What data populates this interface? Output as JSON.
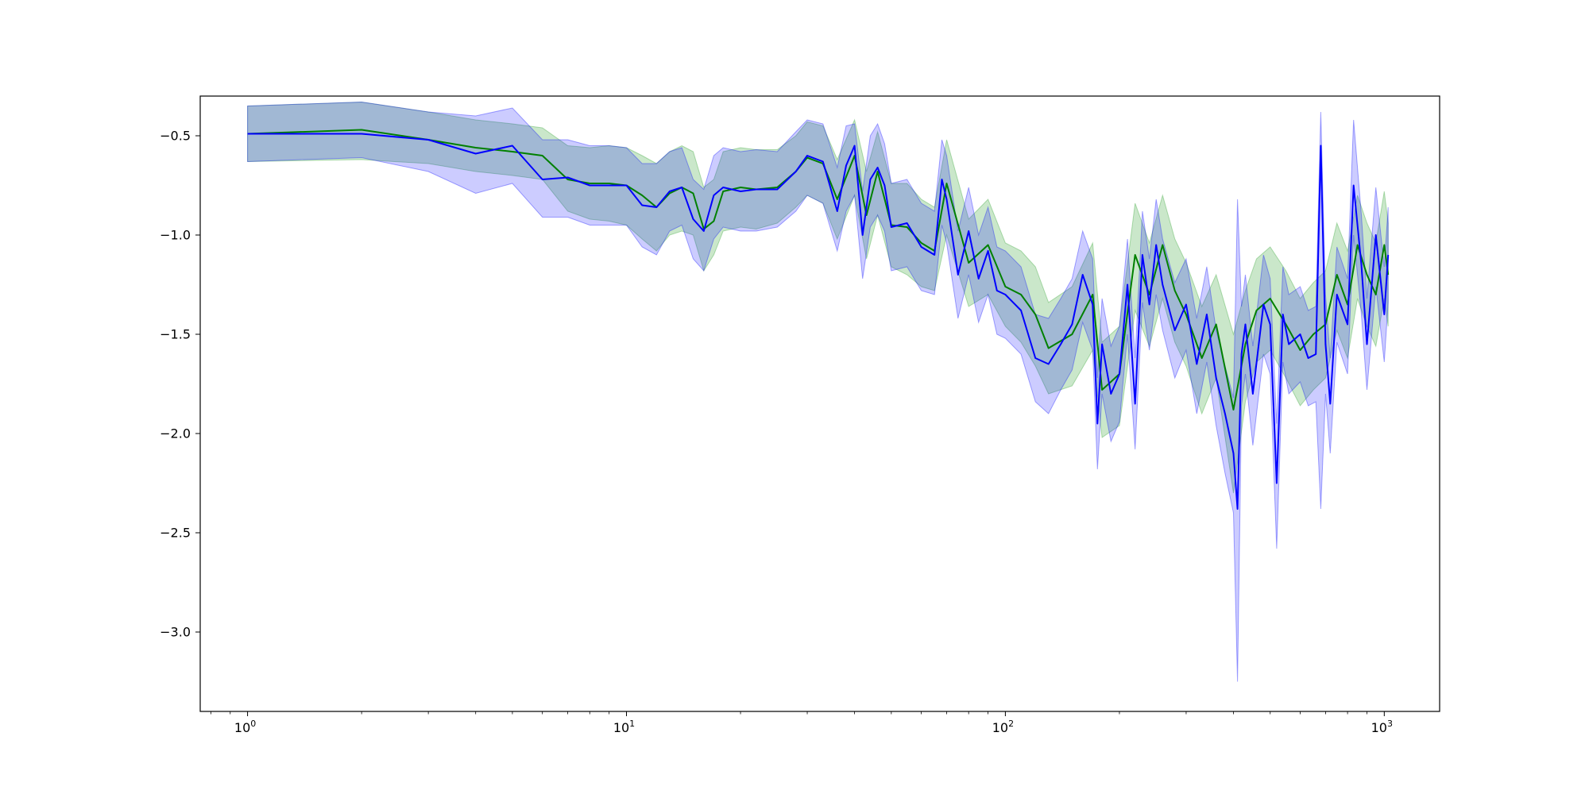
{
  "chart_data": {
    "type": "line",
    "title": "",
    "xlabel": "",
    "ylabel": "",
    "x_scale": "log",
    "xlim": [
      0.75,
      1400
    ],
    "ylim": [
      -3.4,
      -0.3
    ],
    "grid": false,
    "x_ticks": [
      {
        "value": 1,
        "label": "10",
        "exp": "0"
      },
      {
        "value": 10,
        "label": "10",
        "exp": "1"
      },
      {
        "value": 100,
        "label": "10",
        "exp": "2"
      },
      {
        "value": 1000,
        "label": "10",
        "exp": "3"
      }
    ],
    "y_ticks": [
      {
        "value": -0.5,
        "label": "−0.5"
      },
      {
        "value": -1.0,
        "label": "−1.0"
      },
      {
        "value": -1.5,
        "label": "−1.5"
      },
      {
        "value": -2.0,
        "label": "−2.0"
      },
      {
        "value": -2.5,
        "label": "−2.5"
      },
      {
        "value": -3.0,
        "label": "−3.0"
      }
    ],
    "series": [
      {
        "color": "#008000",
        "band_color": "#2ca02c",
        "band_opacity": 0.25,
        "x": [
          1,
          2,
          3,
          4,
          5,
          6,
          7,
          8,
          9,
          10,
          11,
          12,
          13,
          14,
          15,
          16,
          17,
          18,
          20,
          22,
          25,
          28,
          30,
          33,
          36,
          40,
          43,
          46,
          50,
          55,
          60,
          65,
          70,
          80,
          90,
          100,
          110,
          120,
          130,
          150,
          170,
          180,
          200,
          220,
          240,
          260,
          280,
          300,
          330,
          360,
          400,
          430,
          460,
          500,
          550,
          600,
          650,
          700,
          750,
          800,
          850,
          900,
          950,
          1000,
          1024
        ],
        "y": [
          -0.49,
          -0.47,
          -0.52,
          -0.56,
          -0.58,
          -0.6,
          -0.72,
          -0.74,
          -0.74,
          -0.75,
          -0.8,
          -0.86,
          -0.79,
          -0.76,
          -0.79,
          -0.97,
          -0.93,
          -0.78,
          -0.76,
          -0.77,
          -0.76,
          -0.68,
          -0.61,
          -0.64,
          -0.82,
          -0.6,
          -0.9,
          -0.68,
          -0.95,
          -0.96,
          -1.04,
          -1.08,
          -0.74,
          -1.14,
          -1.05,
          -1.26,
          -1.3,
          -1.4,
          -1.57,
          -1.5,
          -1.3,
          -1.78,
          -1.7,
          -1.1,
          -1.3,
          -1.05,
          -1.28,
          -1.4,
          -1.62,
          -1.45,
          -1.88,
          -1.55,
          -1.38,
          -1.32,
          -1.45,
          -1.58,
          -1.5,
          -1.45,
          -1.2,
          -1.35,
          -1.05,
          -1.2,
          -1.3,
          -1.05,
          -1.2
        ],
        "y_low": [
          -0.63,
          -0.62,
          -0.64,
          -0.68,
          -0.7,
          -0.72,
          -0.88,
          -0.92,
          -0.93,
          -0.95,
          -1.02,
          -1.08,
          -1.0,
          -0.98,
          -1.0,
          -1.18,
          -1.1,
          -0.98,
          -0.96,
          -0.97,
          -0.94,
          -0.86,
          -0.8,
          -0.84,
          -1.02,
          -0.8,
          -1.12,
          -0.9,
          -1.16,
          -1.2,
          -1.26,
          -1.28,
          -1.0,
          -1.36,
          -1.3,
          -1.46,
          -1.54,
          -1.66,
          -1.8,
          -1.76,
          -1.58,
          -2.02,
          -1.96,
          -1.38,
          -1.56,
          -1.32,
          -1.54,
          -1.66,
          -1.9,
          -1.72,
          -2.3,
          -1.84,
          -1.64,
          -1.58,
          -1.72,
          -1.86,
          -1.78,
          -1.72,
          -1.48,
          -1.62,
          -1.32,
          -1.46,
          -1.56,
          -1.32,
          -1.46
        ],
        "y_high": [
          -0.35,
          -0.33,
          -0.38,
          -0.42,
          -0.44,
          -0.46,
          -0.55,
          -0.56,
          -0.55,
          -0.56,
          -0.6,
          -0.64,
          -0.58,
          -0.55,
          -0.58,
          -0.76,
          -0.72,
          -0.58,
          -0.56,
          -0.57,
          -0.57,
          -0.5,
          -0.43,
          -0.45,
          -0.62,
          -0.42,
          -0.68,
          -0.48,
          -0.74,
          -0.74,
          -0.82,
          -0.86,
          -0.52,
          -0.92,
          -0.82,
          -1.04,
          -1.08,
          -1.16,
          -1.34,
          -1.26,
          -1.04,
          -1.54,
          -1.46,
          -0.84,
          -1.04,
          -0.8,
          -1.02,
          -1.14,
          -1.36,
          -1.2,
          -1.5,
          -1.28,
          -1.12,
          -1.06,
          -1.18,
          -1.32,
          -1.24,
          -1.18,
          -0.94,
          -1.08,
          -0.8,
          -0.94,
          -1.04,
          -0.78,
          -0.94
        ]
      },
      {
        "color": "#0000ff",
        "band_color": "#0000ff",
        "band_opacity": 0.2,
        "x": [
          1,
          2,
          3,
          4,
          5,
          6,
          7,
          8,
          9,
          10,
          11,
          12,
          13,
          14,
          15,
          16,
          17,
          18,
          20,
          22,
          25,
          28,
          30,
          33,
          36,
          38,
          40,
          42,
          44,
          46,
          48,
          50,
          55,
          60,
          65,
          68,
          70,
          75,
          80,
          85,
          90,
          95,
          100,
          110,
          120,
          130,
          140,
          150,
          160,
          170,
          175,
          180,
          190,
          200,
          210,
          220,
          230,
          240,
          250,
          260,
          280,
          300,
          320,
          340,
          360,
          380,
          400,
          410,
          420,
          430,
          450,
          480,
          500,
          520,
          540,
          560,
          600,
          630,
          660,
          680,
          700,
          720,
          750,
          800,
          830,
          870,
          900,
          950,
          1000,
          1024
        ],
        "y": [
          -0.49,
          -0.49,
          -0.52,
          -0.59,
          -0.55,
          -0.72,
          -0.71,
          -0.75,
          -0.75,
          -0.75,
          -0.85,
          -0.86,
          -0.78,
          -0.76,
          -0.92,
          -0.98,
          -0.8,
          -0.76,
          -0.78,
          -0.77,
          -0.77,
          -0.68,
          -0.6,
          -0.63,
          -0.88,
          -0.65,
          -0.55,
          -1.0,
          -0.72,
          -0.66,
          -0.75,
          -0.96,
          -0.94,
          -1.06,
          -1.1,
          -0.72,
          -0.82,
          -1.2,
          -0.98,
          -1.22,
          -1.08,
          -1.28,
          -1.3,
          -1.38,
          -1.62,
          -1.65,
          -1.55,
          -1.45,
          -1.2,
          -1.35,
          -1.95,
          -1.55,
          -1.8,
          -1.7,
          -1.25,
          -1.85,
          -1.1,
          -1.35,
          -1.05,
          -1.25,
          -1.48,
          -1.35,
          -1.65,
          -1.4,
          -1.72,
          -1.9,
          -2.1,
          -2.38,
          -1.6,
          -1.45,
          -1.8,
          -1.35,
          -1.45,
          -2.25,
          -1.4,
          -1.55,
          -1.5,
          -1.62,
          -1.6,
          -0.55,
          -1.55,
          -1.85,
          -1.3,
          -1.45,
          -0.75,
          -1.15,
          -1.55,
          -1.0,
          -1.4,
          -1.1
        ],
        "y_low": [
          -0.63,
          -0.61,
          -0.68,
          -0.79,
          -0.74,
          -0.91,
          -0.91,
          -0.95,
          -0.95,
          -0.95,
          -1.06,
          -1.1,
          -0.98,
          -0.95,
          -1.12,
          -1.18,
          -1.02,
          -0.96,
          -0.98,
          -0.98,
          -0.96,
          -0.88,
          -0.8,
          -0.84,
          -1.08,
          -0.88,
          -0.8,
          -1.22,
          -0.96,
          -0.9,
          -0.98,
          -1.18,
          -1.16,
          -1.28,
          -1.3,
          -0.95,
          -1.04,
          -1.42,
          -1.2,
          -1.44,
          -1.3,
          -1.5,
          -1.52,
          -1.6,
          -1.84,
          -1.9,
          -1.78,
          -1.68,
          -1.44,
          -1.58,
          -2.18,
          -1.8,
          -2.04,
          -1.94,
          -1.5,
          -2.08,
          -1.34,
          -1.58,
          -1.3,
          -1.48,
          -1.72,
          -1.58,
          -1.9,
          -1.64,
          -1.96,
          -2.2,
          -2.4,
          -3.25,
          -1.86,
          -1.7,
          -2.06,
          -1.6,
          -1.7,
          -2.58,
          -1.64,
          -1.8,
          -1.74,
          -1.86,
          -1.84,
          -2.38,
          -1.8,
          -2.1,
          -1.54,
          -1.7,
          -1.0,
          -1.4,
          -1.78,
          -1.26,
          -1.64,
          -1.34
        ],
        "y_high": [
          -0.35,
          -0.33,
          -0.38,
          -0.4,
          -0.36,
          -0.52,
          -0.52,
          -0.55,
          -0.55,
          -0.56,
          -0.64,
          -0.64,
          -0.58,
          -0.56,
          -0.72,
          -0.77,
          -0.6,
          -0.56,
          -0.58,
          -0.57,
          -0.58,
          -0.48,
          -0.42,
          -0.44,
          -0.66,
          -0.45,
          -0.44,
          -0.78,
          -0.5,
          -0.44,
          -0.54,
          -0.74,
          -0.72,
          -0.84,
          -0.88,
          -0.52,
          -0.6,
          -0.98,
          -0.76,
          -1.0,
          -0.86,
          -1.06,
          -1.08,
          -1.16,
          -1.4,
          -1.42,
          -1.32,
          -1.22,
          -0.98,
          -1.12,
          -1.72,
          -1.32,
          -1.56,
          -1.46,
          -1.02,
          -1.62,
          -0.88,
          -1.12,
          -0.82,
          -1.02,
          -1.24,
          -1.12,
          -1.42,
          -1.16,
          -1.48,
          -1.66,
          -1.82,
          -0.82,
          -1.36,
          -1.2,
          -1.56,
          -1.1,
          -1.22,
          -1.95,
          -1.16,
          -1.3,
          -1.26,
          -1.38,
          -1.36,
          -0.38,
          -1.3,
          -1.62,
          -1.06,
          -1.22,
          -0.42,
          -0.9,
          -1.32,
          -0.76,
          -1.16,
          -0.86
        ]
      }
    ]
  }
}
